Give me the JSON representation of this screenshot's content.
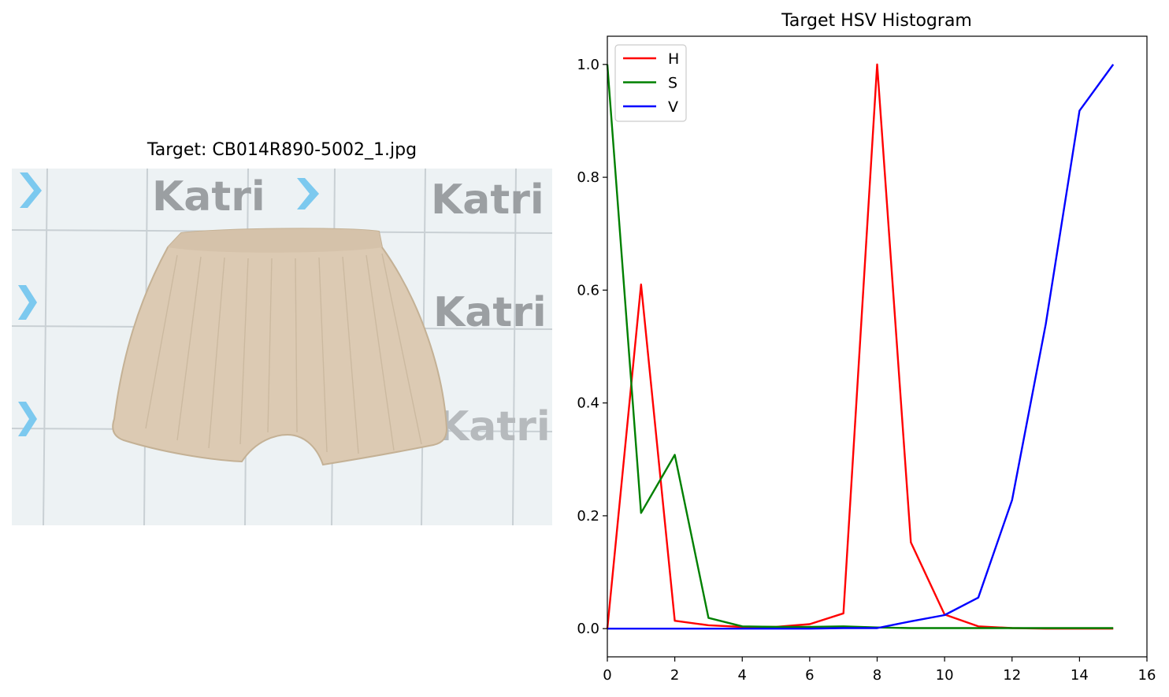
{
  "image_panel": {
    "title": "Target: CB014R890-5002_1.jpg",
    "watermark_text": "Katri"
  },
  "chart_data": {
    "type": "line",
    "title": "Target HSV Histogram",
    "xlabel": "",
    "ylabel": "",
    "xlim": [
      0,
      16
    ],
    "ylim": [
      -0.05,
      1.05
    ],
    "xticks": [
      0,
      2,
      4,
      6,
      8,
      10,
      12,
      14,
      16
    ],
    "yticks": [
      0.0,
      0.2,
      0.4,
      0.6,
      0.8,
      1.0
    ],
    "ytick_labels": [
      "0.0",
      "0.2",
      "0.4",
      "0.6",
      "0.8",
      "1.0"
    ],
    "grid": false,
    "legend_position": "top-left",
    "x": [
      0,
      1,
      2,
      3,
      4,
      5,
      6,
      7,
      8,
      9,
      10,
      11,
      12,
      13,
      14,
      15
    ],
    "series": [
      {
        "name": "H",
        "color": "#ff0000",
        "values": [
          0.0,
          0.61,
          0.014,
          0.006,
          0.003,
          0.003,
          0.008,
          0.027,
          1.0,
          0.153,
          0.025,
          0.004,
          0.001,
          0.0,
          0.0,
          0.0
        ]
      },
      {
        "name": "S",
        "color": "#008000",
        "values": [
          1.0,
          0.205,
          0.308,
          0.019,
          0.004,
          0.003,
          0.003,
          0.004,
          0.002,
          0.001,
          0.001,
          0.001,
          0.001,
          0.001,
          0.001,
          0.001
        ]
      },
      {
        "name": "V",
        "color": "#0000ff",
        "values": [
          0.0,
          0.0,
          0.0,
          0.0,
          0.0,
          0.0,
          0.0,
          0.001,
          0.001,
          0.013,
          0.024,
          0.055,
          0.228,
          0.54,
          0.918,
          1.0
        ]
      }
    ]
  }
}
